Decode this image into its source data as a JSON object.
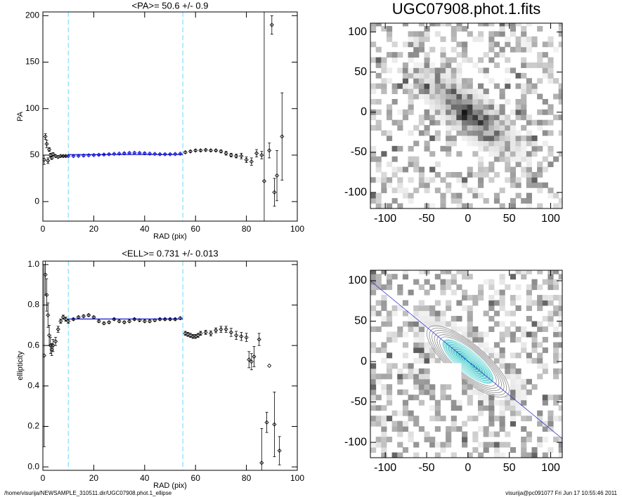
{
  "chart_data": [
    {
      "type": "scatter",
      "title": "<PA>=  50.6 +/-   0.9",
      "x_label": "RAD (pix)",
      "y_label": "PA",
      "xlim": [
        0,
        100
      ],
      "ylim": [
        -21,
        204
      ],
      "xticks": [
        0,
        20,
        40,
        60,
        80,
        100
      ],
      "yticks": [
        0,
        50,
        100,
        150,
        200
      ],
      "vlines": [
        10,
        55
      ],
      "vline_color": "#7fdfff",
      "fit_line": {
        "x": [
          10,
          55
        ],
        "y": 50.6
      },
      "fit_color": "#0000cc",
      "highlight_color": "#0000cc",
      "series": [
        {
          "color": "#000000",
          "x": [
            0.5,
            1,
            1.5,
            2,
            2.5,
            3,
            3.5,
            4,
            5,
            6,
            7,
            8,
            9,
            10,
            12,
            14,
            16,
            18,
            20,
            22,
            24,
            26,
            28,
            30,
            32,
            34,
            36,
            38,
            40,
            42,
            44,
            46,
            48,
            50,
            52,
            54,
            56,
            58,
            60,
            62,
            64,
            66,
            68,
            70,
            72,
            74,
            76,
            78,
            80,
            82,
            84,
            86,
            87,
            89,
            90,
            91,
            92,
            94
          ],
          "values": [
            45,
            70,
            62,
            44,
            56,
            50,
            47,
            51,
            49,
            48,
            49,
            49,
            49,
            49,
            49,
            49.2,
            49.5,
            49.8,
            50,
            50.3,
            50.6,
            51,
            51.3,
            51.6,
            52,
            52.3,
            52.5,
            52.3,
            52,
            51.6,
            51.3,
            51,
            51,
            51,
            51.2,
            51.5,
            53,
            54,
            55,
            55,
            55.5,
            55,
            55,
            54,
            52,
            50,
            49,
            49,
            45,
            43,
            52,
            50,
            22,
            55,
            190,
            10,
            28,
            70
          ],
          "errors": [
            5,
            3,
            4,
            3,
            2,
            2,
            1.5,
            1.5,
            1,
            1,
            1,
            0.8,
            0.8,
            0.8,
            0.6,
            0.6,
            0.6,
            0.6,
            0.6,
            0.6,
            0.6,
            0.6,
            0.6,
            0.6,
            0.6,
            0.6,
            0.6,
            0.6,
            0.6,
            0.6,
            0.6,
            0.6,
            0.6,
            0.6,
            0.6,
            0.6,
            1,
            1,
            1,
            1,
            1,
            1,
            1,
            1.5,
            2,
            2,
            2,
            3,
            3,
            4,
            4,
            4,
            250,
            8,
            10,
            15,
            27,
            47
          ]
        }
      ]
    },
    {
      "type": "image",
      "title": "UGC07908.phot.1.fits",
      "xlim": [
        -118,
        114
      ],
      "ylim": [
        -120,
        111
      ],
      "xticks": [
        -100,
        -50,
        0,
        50,
        100
      ],
      "yticks": [
        -100,
        -50,
        0,
        50,
        100
      ],
      "contours": false
    },
    {
      "type": "scatter",
      "title": "<ELL>= 0.731 +/-  0.013",
      "x_label": "RAD (pix)",
      "y_label": "ellipticity",
      "xlim": [
        0,
        100
      ],
      "ylim": [
        -0.017,
        1.017
      ],
      "xticks": [
        0,
        20,
        40,
        60,
        80,
        100
      ],
      "yticks": [
        {
          "value": 0,
          "label": "0.0"
        },
        0.2,
        0.4,
        0.6,
        0.8,
        {
          "value": 1,
          "label": "1.0"
        }
      ],
      "vlines": [
        10,
        55
      ],
      "vline_color": "#7fdfff",
      "fit_line": {
        "x": [
          10,
          55
        ],
        "y": 0.731
      },
      "fit_color": "#0000cc",
      "series": [
        {
          "color": "#000000",
          "x": [
            0.5,
            1,
            1.5,
            2,
            2.5,
            3,
            3.5,
            4,
            5,
            6,
            7,
            8,
            9,
            10,
            12,
            14,
            16,
            18,
            20,
            22,
            24,
            26,
            28,
            30,
            32,
            34,
            36,
            38,
            40,
            42,
            44,
            46,
            48,
            50,
            52,
            54,
            56,
            57,
            58,
            59,
            60,
            61,
            62,
            64,
            66,
            68,
            70,
            72,
            74,
            76,
            78,
            80,
            81,
            82,
            83,
            85,
            86,
            88,
            89,
            91,
            93
          ],
          "values": [
            0.55,
            0.95,
            0.85,
            0.75,
            0.65,
            0.6,
            0.58,
            0.6,
            0.62,
            0.68,
            0.72,
            0.74,
            0.73,
            0.72,
            0.73,
            0.74,
            0.745,
            0.75,
            0.74,
            0.72,
            0.71,
            0.715,
            0.73,
            0.72,
            0.715,
            0.72,
            0.73,
            0.725,
            0.72,
            0.72,
            0.725,
            0.73,
            0.73,
            0.73,
            0.73,
            0.735,
            0.66,
            0.655,
            0.65,
            0.645,
            0.645,
            0.65,
            0.66,
            0.665,
            0.66,
            0.675,
            0.68,
            0.68,
            0.665,
            0.65,
            0.645,
            0.64,
            0.53,
            0.52,
            0.545,
            0.63,
            0.02,
            0.22,
            0.5,
            0.21,
            0.08
          ],
          "errors": [
            0.45,
            0.1,
            0.08,
            0.06,
            0.05,
            0.04,
            0.03,
            0.03,
            0.02,
            0.015,
            0.01,
            0.01,
            0.01,
            0.01,
            0.005,
            0.005,
            0.005,
            0.005,
            0.005,
            0.005,
            0.005,
            0.005,
            0.005,
            0.005,
            0.005,
            0.005,
            0.005,
            0.005,
            0.005,
            0.005,
            0.005,
            0.005,
            0.005,
            0.005,
            0.005,
            0.005,
            0.01,
            0.01,
            0.01,
            0.01,
            0.01,
            0.01,
            0.01,
            0.01,
            0.012,
            0.012,
            0.015,
            0.015,
            0.02,
            0.02,
            0.02,
            0.02,
            0.04,
            0.04,
            0.05,
            0.03,
            0.17,
            0.05,
            0,
            0.16,
            0.07
          ]
        }
      ]
    },
    {
      "type": "image",
      "xlim": [
        -118,
        114
      ],
      "ylim": [
        -119,
        113
      ],
      "xticks": [
        -100,
        -50,
        0,
        50,
        100
      ],
      "yticks": [
        -100,
        -50,
        0,
        50,
        100
      ],
      "contours": true,
      "contour_color": "#00d8d8",
      "axis_line_color": "#3333cc"
    }
  ],
  "footer": {
    "left": "/home/visurija/NEWSAMPLE_310511.dir/UGC07908.phot.1_ellipse",
    "right": "visurija@pc091077  Fri Jun 17 10:55:46 2011"
  }
}
